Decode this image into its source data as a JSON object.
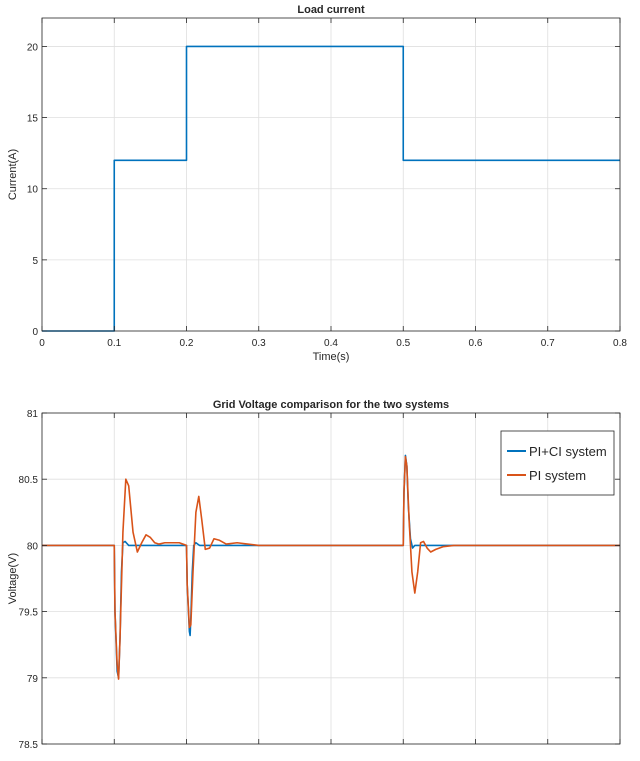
{
  "chart_data": [
    {
      "type": "line",
      "title": "Load current",
      "xlabel": "Time(s)",
      "ylabel": "Current(A)",
      "xlim": [
        0,
        0.8
      ],
      "ylim": [
        0,
        22
      ],
      "xticks": [
        0,
        0.1,
        0.2,
        0.3,
        0.4,
        0.5,
        0.6,
        0.7,
        0.8
      ],
      "xtick_labels": [
        "0",
        "0.1",
        "0.2",
        "0.3",
        "0.4",
        "0.5",
        "0.6",
        "0.7",
        "0.8"
      ],
      "yticks": [
        0,
        5,
        10,
        15,
        20
      ],
      "ytick_labels": [
        "0",
        "5",
        "10",
        "15",
        "20"
      ],
      "grid": true,
      "series": [
        {
          "color": "#0072BD",
          "x": [
            0,
            0.1,
            0.1,
            0.2,
            0.2,
            0.5,
            0.5,
            0.8
          ],
          "y": [
            0,
            0,
            12,
            12,
            20,
            20,
            12,
            12
          ]
        }
      ]
    },
    {
      "type": "line",
      "title": "Grid Voltage comparison for the two systems",
      "xlabel": "",
      "ylabel": "Voltage(V)",
      "xlim": [
        0,
        0.8
      ],
      "ylim": [
        78.5,
        81
      ],
      "xticks": [
        0,
        0.1,
        0.2,
        0.3,
        0.4,
        0.5,
        0.6,
        0.7,
        0.8
      ],
      "yticks": [
        78.5,
        79,
        79.5,
        80,
        80.5,
        81
      ],
      "ytick_labels": [
        "78.5",
        "79",
        "79.5",
        "80",
        "80.5",
        "81"
      ],
      "grid": true,
      "legend_position": "top-right",
      "series": [
        {
          "name": "PI+CI system",
          "color": "#0072BD",
          "x": [
            0,
            0.1,
            0.101,
            0.104,
            0.106,
            0.108,
            0.11,
            0.112,
            0.115,
            0.12,
            0.13,
            0.2,
            0.201,
            0.204,
            0.205,
            0.206,
            0.208,
            0.21,
            0.213,
            0.218,
            0.23,
            0.5,
            0.501,
            0.503,
            0.505,
            0.507,
            0.51,
            0.513,
            0.516,
            0.52,
            0.53,
            0.8
          ],
          "y": [
            80,
            80,
            79.5,
            79.05,
            79.0,
            79.3,
            79.8,
            80.02,
            80.03,
            80.0,
            80.0,
            80.0,
            79.7,
            79.35,
            79.32,
            79.45,
            79.8,
            80.0,
            80.02,
            80.0,
            80.0,
            80.0,
            80.4,
            80.68,
            80.6,
            80.3,
            80.05,
            79.98,
            80.0,
            80.0,
            80.0,
            80.0
          ]
        },
        {
          "name": "PI system",
          "color": "#D95319",
          "x": [
            0,
            0.1,
            0.101,
            0.104,
            0.106,
            0.108,
            0.112,
            0.116,
            0.12,
            0.126,
            0.132,
            0.138,
            0.144,
            0.15,
            0.156,
            0.162,
            0.17,
            0.19,
            0.2,
            0.201,
            0.204,
            0.206,
            0.209,
            0.213,
            0.217,
            0.221,
            0.226,
            0.232,
            0.238,
            0.245,
            0.255,
            0.27,
            0.3,
            0.5,
            0.501,
            0.503,
            0.505,
            0.508,
            0.512,
            0.516,
            0.52,
            0.524,
            0.528,
            0.533,
            0.538,
            0.545,
            0.555,
            0.57,
            0.6,
            0.8
          ],
          "y": [
            80,
            80,
            79.5,
            79.1,
            78.99,
            79.3,
            80.1,
            80.5,
            80.45,
            80.1,
            79.95,
            80.02,
            80.08,
            80.06,
            80.02,
            80.01,
            80.02,
            80.02,
            80.0,
            79.7,
            79.38,
            79.4,
            79.8,
            80.25,
            80.37,
            80.2,
            79.97,
            79.98,
            80.05,
            80.04,
            80.01,
            80.02,
            80.0,
            80.0,
            80.4,
            80.67,
            80.6,
            80.2,
            79.8,
            79.64,
            79.8,
            80.02,
            80.03,
            79.98,
            79.95,
            79.97,
            79.99,
            80.0,
            80.0,
            80.0
          ]
        }
      ]
    }
  ]
}
